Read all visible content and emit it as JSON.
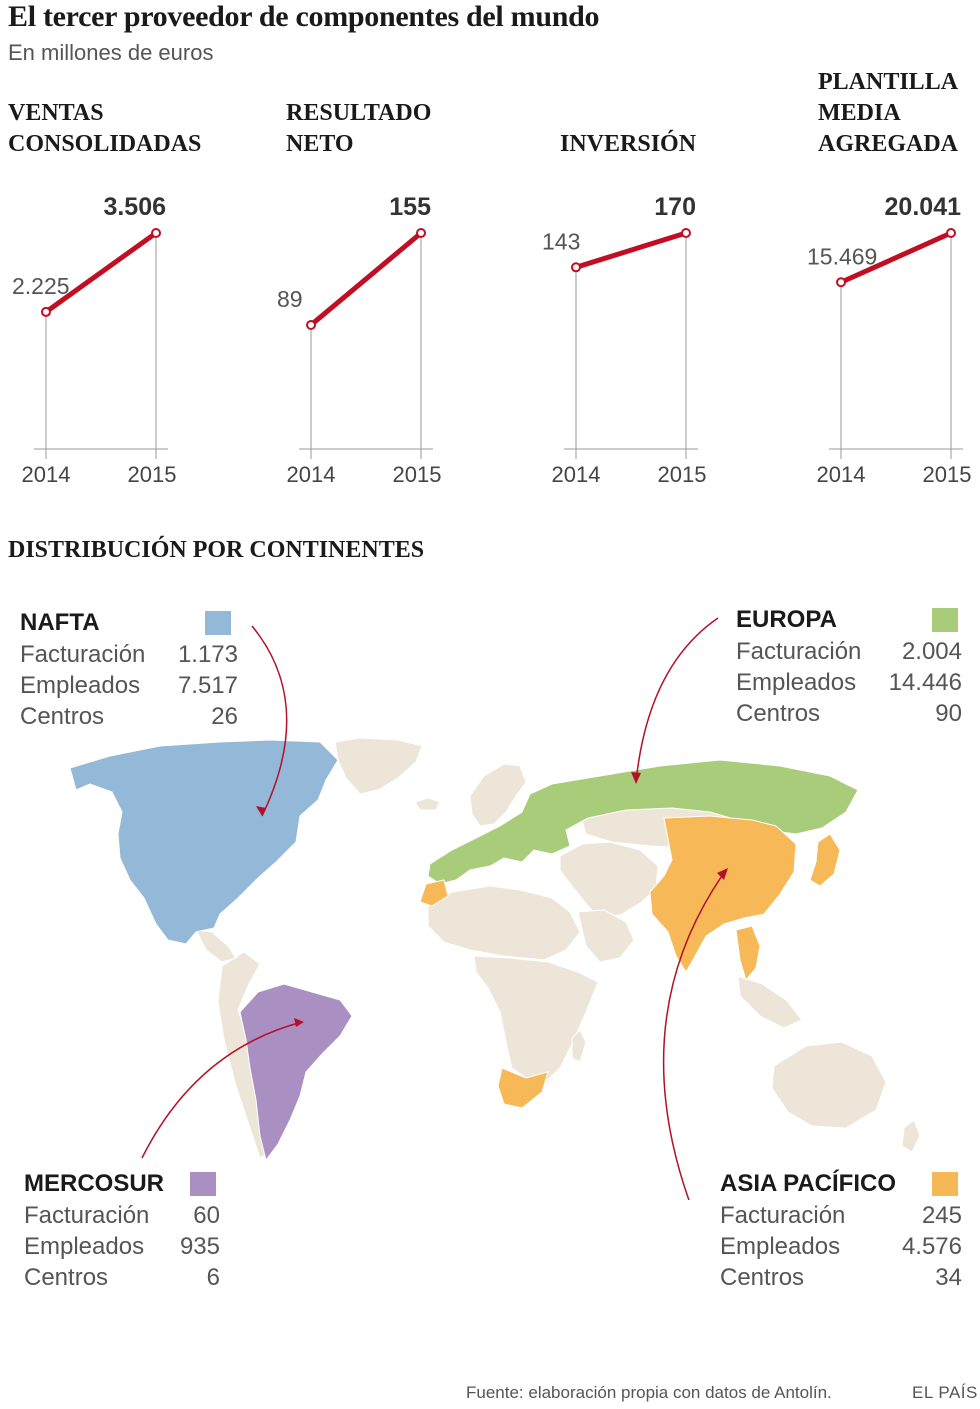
{
  "title": "El tercer proveedor de componentes del mundo",
  "subtitle": "En millones de euros",
  "colors": {
    "line": "#c20e23",
    "axis": "#9a9a9a",
    "land": "#ede6d8",
    "nafta": "#94b9d8",
    "europa": "#a9cc7a",
    "mercosur": "#aa8fc2",
    "asia": "#f7b857"
  },
  "chart_data": [
    {
      "type": "line",
      "title": [
        "VENTAS",
        "CONSOLIDADAS"
      ],
      "x": [
        "2014",
        "2015"
      ],
      "values": [
        2225,
        3506
      ],
      "labels": [
        "2.225",
        "3.506"
      ]
    },
    {
      "type": "line",
      "title": [
        "RESULTADO",
        "NETO"
      ],
      "x": [
        "2014",
        "2015"
      ],
      "values": [
        89,
        155
      ],
      "labels": [
        "89",
        "155"
      ]
    },
    {
      "type": "line",
      "title": [
        "INVERSIÓN"
      ],
      "x": [
        "2014",
        "2015"
      ],
      "values": [
        143,
        170
      ],
      "labels": [
        "143",
        "170"
      ]
    },
    {
      "type": "line",
      "title": [
        "PLANTILLA",
        "MEDIA",
        "AGREGADA"
      ],
      "x": [
        "2014",
        "2015"
      ],
      "values": [
        15469,
        20041
      ],
      "labels": [
        "15.469",
        "20.041"
      ]
    }
  ],
  "distribution": {
    "heading": "DISTRIBUCIÓN POR CONTINENTES",
    "regions": [
      {
        "name": "NAFTA",
        "color": "#94b9d8",
        "rows": [
          {
            "label": "Facturación",
            "value": "1.173"
          },
          {
            "label": "Empleados",
            "value": "7.517"
          },
          {
            "label": "Centros",
            "value": "26"
          }
        ]
      },
      {
        "name": "EUROPA",
        "color": "#a9cc7a",
        "rows": [
          {
            "label": "Facturación",
            "value": "2.004"
          },
          {
            "label": "Empleados",
            "value": "14.446"
          },
          {
            "label": "Centros",
            "value": "90"
          }
        ]
      },
      {
        "name": "MERCOSUR",
        "color": "#aa8fc2",
        "rows": [
          {
            "label": "Facturación",
            "value": "60"
          },
          {
            "label": "Empleados",
            "value": "935"
          },
          {
            "label": "Centros",
            "value": "6"
          }
        ]
      },
      {
        "name": "ASIA PACÍFICO",
        "color": "#f7b857",
        "rows": [
          {
            "label": "Facturación",
            "value": "245"
          },
          {
            "label": "Empleados",
            "value": "4.576"
          },
          {
            "label": "Centros",
            "value": "34"
          }
        ]
      }
    ]
  },
  "footer": {
    "source": "Fuente: elaboración propia con datos de Antolín.",
    "brand": "EL PAÍS"
  }
}
